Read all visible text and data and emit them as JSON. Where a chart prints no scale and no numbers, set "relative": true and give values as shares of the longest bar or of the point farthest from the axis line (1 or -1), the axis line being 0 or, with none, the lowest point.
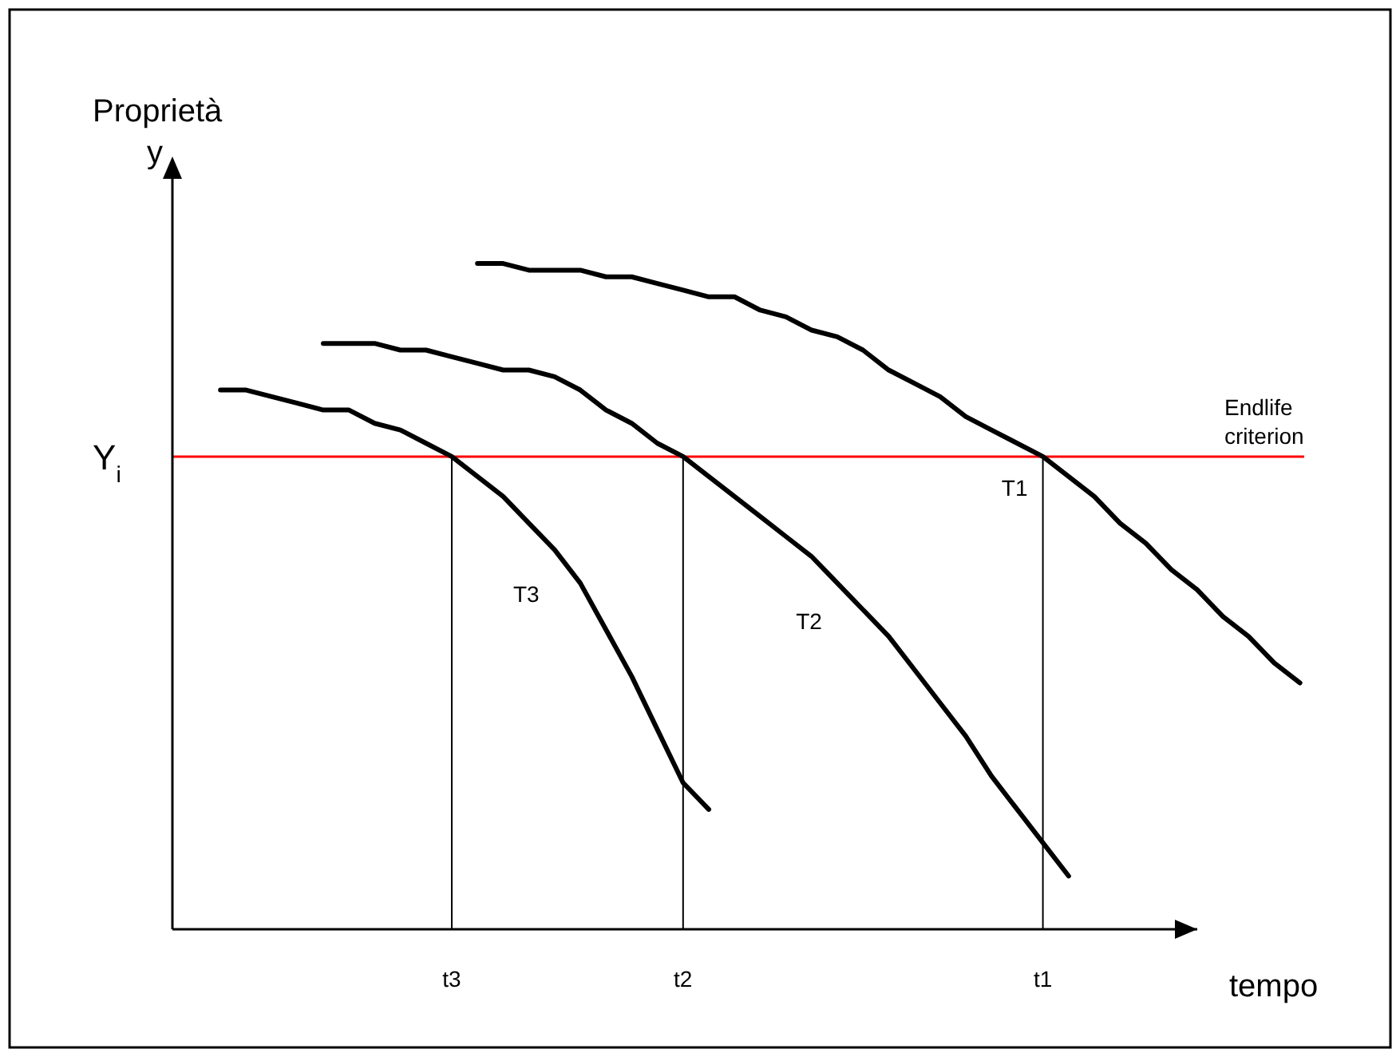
{
  "chart_data": {
    "type": "line",
    "relative": true,
    "ylabel": "Proprietà\ny",
    "xlabel": "tempo",
    "categories": [
      null,
      null,
      null,
      null,
      null,
      null,
      null,
      null,
      null,
      null,
      null,
      "t3",
      null,
      null,
      null,
      null,
      null,
      null,
      null,
      null,
      "t2",
      null,
      null,
      null,
      null,
      null,
      null,
      null,
      null,
      null,
      null,
      null,
      null,
      null,
      "t1",
      null,
      null,
      null,
      null,
      null,
      null,
      null,
      null,
      null,
      null
    ],
    "series": [
      {
        "name": "T1",
        "color": "#000000",
        "values": [
          null,
          null,
          null,
          null,
          null,
          null,
          null,
          null,
          null,
          null,
          null,
          null,
          1.0,
          1.0,
          0.99,
          0.99,
          0.99,
          0.98,
          0.98,
          0.97,
          0.96,
          0.95,
          0.95,
          0.93,
          0.92,
          0.9,
          0.89,
          0.87,
          0.84,
          0.82,
          0.8,
          0.77,
          0.75,
          0.73,
          0.71,
          0.68,
          0.65,
          0.61,
          0.58,
          0.54,
          0.51,
          0.47,
          0.44,
          0.4,
          0.37
        ]
      },
      {
        "name": "T2",
        "color": "#000000",
        "values": [
          null,
          null,
          null,
          null,
          null,
          null,
          0.88,
          0.88,
          0.88,
          0.87,
          0.87,
          0.86,
          0.85,
          0.84,
          0.84,
          0.83,
          0.81,
          0.78,
          0.76,
          0.73,
          0.71,
          0.68,
          0.65,
          0.62,
          0.59,
          0.56,
          0.52,
          0.48,
          0.44,
          0.39,
          0.34,
          0.29,
          0.23,
          0.18,
          0.13,
          0.08,
          null,
          null,
          null,
          null,
          null,
          null,
          null,
          null,
          null
        ]
      },
      {
        "name": "T3",
        "color": "#000000",
        "values": [
          null,
          null,
          0.81,
          0.81,
          0.8,
          0.79,
          0.78,
          0.78,
          0.76,
          0.75,
          0.73,
          0.71,
          0.68,
          0.65,
          0.61,
          0.57,
          0.52,
          0.45,
          0.38,
          0.3,
          0.22,
          0.18,
          null,
          null,
          null,
          null,
          null,
          null,
          null,
          null,
          null,
          null,
          null,
          null,
          null,
          null,
          null,
          null,
          null,
          null,
          null,
          null,
          null,
          null,
          null
        ]
      }
    ],
    "ref_lines": [
      {
        "axis": "y",
        "value": 0.71,
        "label": "Endlife\ncriterion",
        "color": "#ff0000"
      },
      {
        "axis": "x",
        "value": "t3",
        "color": "#000000"
      },
      {
        "axis": "x",
        "value": "t2",
        "color": "#000000"
      },
      {
        "axis": "x",
        "value": "t1",
        "color": "#000000"
      }
    ],
    "annotations": [
      "Y$_{i}$"
    ],
    "legend": false,
    "marker": "none",
    "line_style": "solid"
  }
}
